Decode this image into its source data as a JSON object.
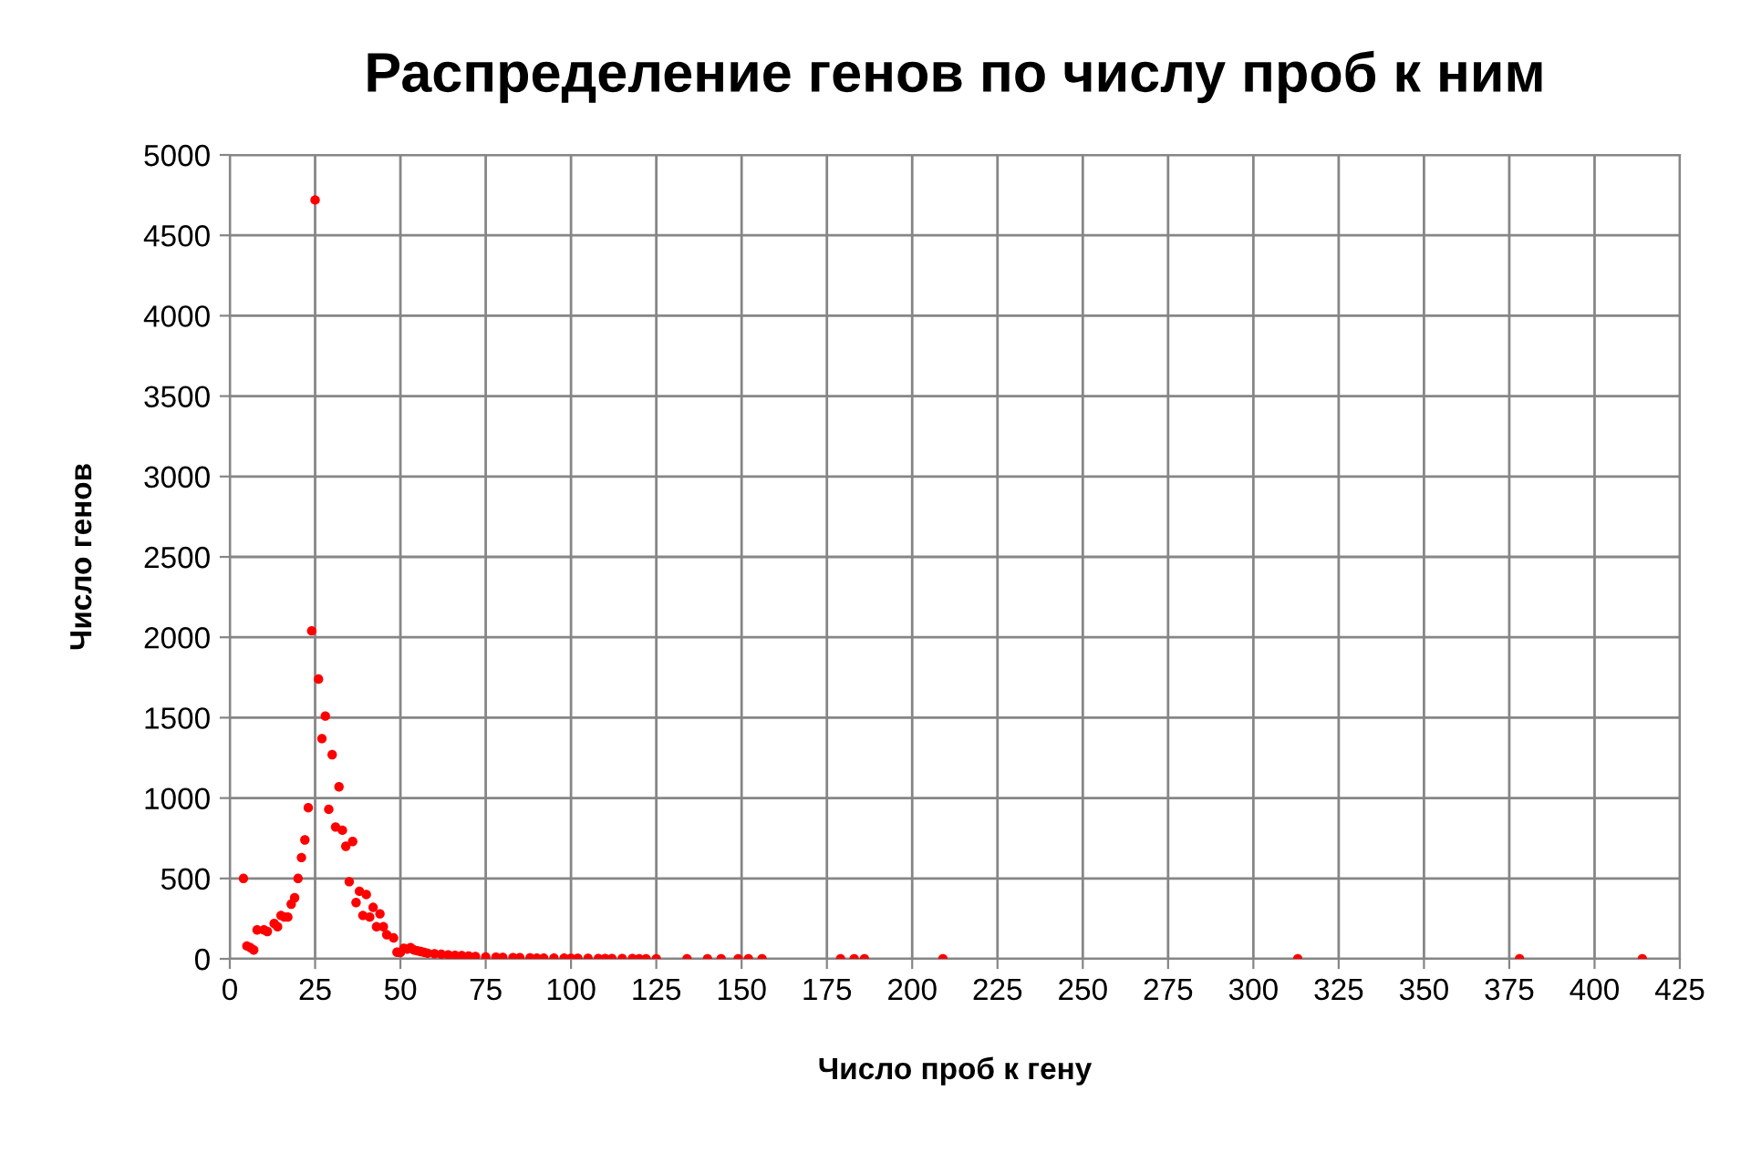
{
  "chart_data": {
    "type": "scatter",
    "title": "Распределение генов по числу проб к ним",
    "xlabel": "Число проб к гену",
    "ylabel": "Число генов",
    "x": [
      4,
      5,
      6,
      7,
      8,
      10,
      11,
      13,
      14,
      15,
      16,
      17,
      18,
      19,
      20,
      21,
      22,
      23,
      24,
      25,
      26,
      27,
      28,
      29,
      30,
      31,
      32,
      33,
      34,
      35,
      36,
      37,
      38,
      39,
      40,
      41,
      42,
      43,
      44,
      45,
      46,
      48,
      49,
      50,
      51,
      52,
      53,
      54,
      55,
      56,
      57,
      58,
      60,
      62,
      64,
      66,
      68,
      70,
      72,
      75,
      78,
      80,
      83,
      85,
      88,
      90,
      92,
      95,
      98,
      100,
      102,
      105,
      108,
      110,
      112,
      115,
      118,
      120,
      122,
      125,
      134,
      140,
      144,
      149,
      152,
      156,
      179,
      183,
      186,
      209,
      313,
      378,
      414
    ],
    "series": [
      {
        "color": "#ff0000",
        "values": [
          500,
          80,
          70,
          55,
          180,
          180,
          170,
          220,
          200,
          270,
          260,
          260,
          340,
          380,
          500,
          630,
          740,
          940,
          2040,
          4720,
          1740,
          1370,
          1510,
          930,
          1270,
          820,
          1070,
          800,
          700,
          480,
          730,
          350,
          420,
          270,
          400,
          260,
          320,
          200,
          280,
          200,
          150,
          130,
          41,
          40,
          65,
          60,
          70,
          55,
          50,
          45,
          40,
          35,
          32,
          28,
          25,
          22,
          20,
          18,
          15,
          12,
          10,
          9,
          8,
          7,
          6,
          5,
          5,
          4,
          4,
          3,
          3,
          3,
          2,
          2,
          2,
          2,
          2,
          1,
          1,
          1,
          1,
          1,
          1,
          1,
          1,
          1,
          1,
          1,
          1,
          1,
          1,
          1,
          1
        ]
      }
    ],
    "xlim": [
      0,
      425
    ],
    "ylim": [
      0,
      5000
    ],
    "xticks": [
      0,
      25,
      50,
      75,
      100,
      125,
      150,
      175,
      200,
      225,
      250,
      275,
      300,
      325,
      350,
      375,
      400,
      425
    ],
    "yticks": [
      0,
      500,
      1000,
      1500,
      2000,
      2500,
      3000,
      3500,
      4000,
      4500,
      5000
    ],
    "grid": true,
    "marker": "circle"
  }
}
